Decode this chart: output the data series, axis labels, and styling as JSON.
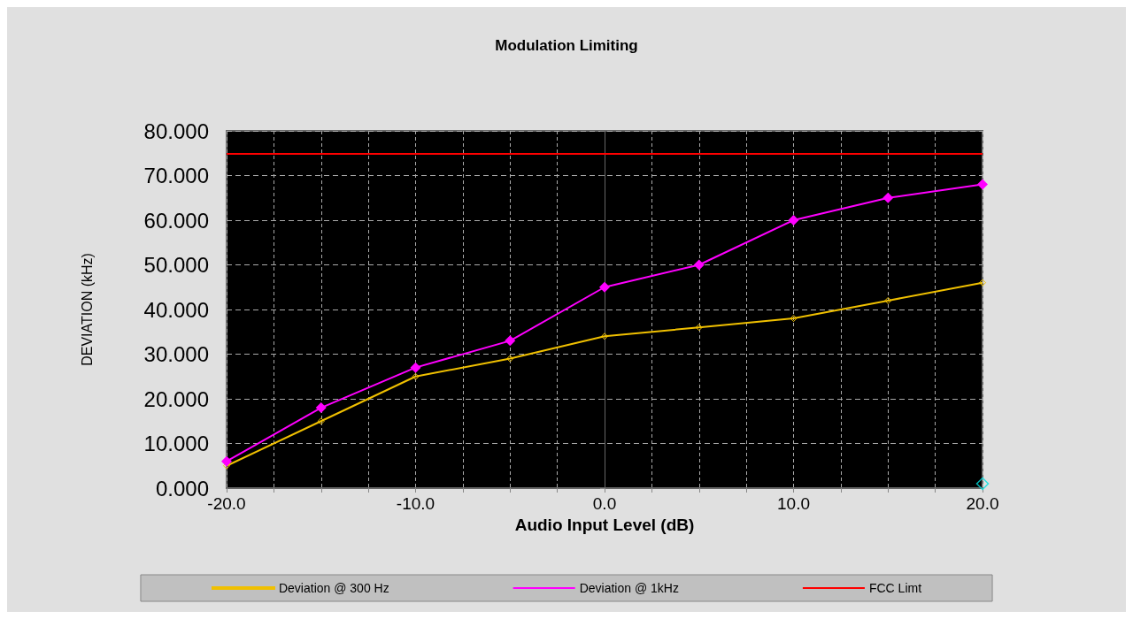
{
  "chart_data": {
    "type": "line",
    "title": "Modulation Limiting",
    "xlabel": "Audio Input Level (dB)",
    "ylabel": "DEVIATION (kHz)",
    "x": [
      -20,
      -15,
      -10,
      -5,
      0,
      5,
      10,
      15,
      20
    ],
    "series": [
      {
        "name": "Deviation @ 300 Hz",
        "color": "#f0c000",
        "values": [
          5,
          15,
          25,
          29,
          34,
          36,
          38,
          42,
          46
        ],
        "marker": "diamond"
      },
      {
        "name": "Deviation @ 1kHz",
        "color": "#ff00ff",
        "values": [
          6,
          18,
          27,
          33,
          45,
          50,
          60,
          65,
          68
        ],
        "marker": "diamond"
      },
      {
        "type": "scatter",
        "color": "#00e0e0",
        "x": [
          20
        ],
        "values": [
          1
        ],
        "marker": "diamond"
      }
    ],
    "xlim": [
      -20,
      20
    ],
    "xticks": [
      {
        "value": -20,
        "label": "-20.0"
      },
      {
        "value": -17.5,
        "label": null
      },
      {
        "value": -15,
        "label": null
      },
      {
        "value": -12.5,
        "label": null
      },
      {
        "value": -10,
        "label": "-10.0"
      },
      {
        "value": -7.5,
        "label": null
      },
      {
        "value": -5,
        "label": null
      },
      {
        "value": -2.5,
        "label": null
      },
      {
        "value": 0,
        "label": "0.0"
      },
      {
        "value": 2.5,
        "label": null
      },
      {
        "value": 5,
        "label": null
      },
      {
        "value": 7.5,
        "label": null
      },
      {
        "value": 10,
        "label": "10.0"
      },
      {
        "value": 12.5,
        "label": null
      },
      {
        "value": 15,
        "label": null
      },
      {
        "value": 17.5,
        "label": null
      },
      {
        "value": 20,
        "label": "20.0"
      }
    ],
    "ylim": [
      0,
      80
    ],
    "yticks": [
      {
        "value": 0,
        "label": "0.000"
      },
      {
        "value": 10,
        "label": "10.000"
      },
      {
        "value": 20,
        "label": "20.000"
      },
      {
        "value": 30,
        "label": "30.000"
      },
      {
        "value": 40,
        "label": "40.000"
      },
      {
        "value": 50,
        "label": "50.000"
      },
      {
        "value": 60,
        "label": "60.000"
      },
      {
        "value": 70,
        "label": "70.000"
      },
      {
        "value": 80,
        "label": "80.000"
      }
    ],
    "ref_lines": [
      {
        "axis": "y",
        "value": 75,
        "label": "FCC Limt",
        "color": "#ff0000",
        "line_style": "solid"
      }
    ],
    "grid": true,
    "legend": "bottom",
    "line_style": "solid"
  }
}
